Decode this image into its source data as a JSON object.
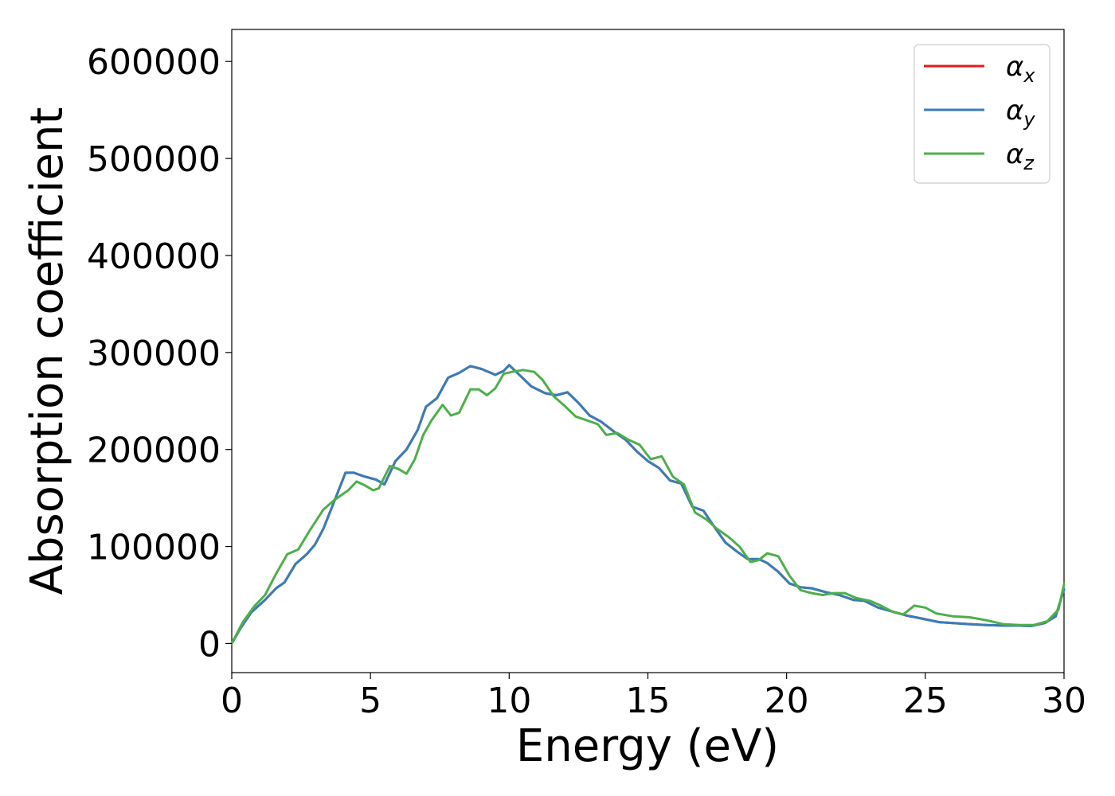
{
  "chart_data": {
    "type": "line",
    "title": "",
    "xlabel": "Energy (eV)",
    "ylabel": "Absorption coefficient",
    "xlim": [
      0,
      30
    ],
    "ylim": [
      -30000,
      633000
    ],
    "xticks": [
      0,
      5,
      10,
      15,
      20,
      25,
      30
    ],
    "xtick_labels": [
      "0",
      "5",
      "10",
      "15",
      "20",
      "25",
      "30"
    ],
    "yticks": [
      0,
      100000,
      200000,
      300000,
      400000,
      500000,
      600000
    ],
    "ytick_labels": [
      "0",
      "100000",
      "200000",
      "300000",
      "400000",
      "500000",
      "600000"
    ],
    "grid": false,
    "legend_position": "top-right",
    "series": [
      {
        "name": "α",
        "name_sub": "x",
        "color": "#e41a1c",
        "points": [
          [
            0,
            0
          ],
          [
            0.3,
            15000
          ],
          [
            0.7,
            32000
          ],
          [
            1.2,
            45000
          ],
          [
            1.6,
            57000
          ],
          [
            1.9,
            63000
          ],
          [
            2.3,
            82000
          ],
          [
            2.7,
            92000
          ],
          [
            3.0,
            102000
          ],
          [
            3.3,
            118000
          ],
          [
            3.7,
            147000
          ],
          [
            4.1,
            176000
          ],
          [
            4.4,
            176000
          ],
          [
            4.8,
            172000
          ],
          [
            5.2,
            169000
          ],
          [
            5.5,
            164000
          ],
          [
            5.9,
            188000
          ],
          [
            6.3,
            200000
          ],
          [
            6.7,
            220000
          ],
          [
            7.0,
            244000
          ],
          [
            7.4,
            253000
          ],
          [
            7.8,
            274000
          ],
          [
            8.2,
            279000
          ],
          [
            8.6,
            286000
          ],
          [
            9.0,
            283000
          ],
          [
            9.5,
            277000
          ],
          [
            9.8,
            281000
          ],
          [
            10.0,
            287000
          ],
          [
            10.4,
            276000
          ],
          [
            10.8,
            265000
          ],
          [
            11.3,
            258000
          ],
          [
            11.7,
            256000
          ],
          [
            12.1,
            259000
          ],
          [
            12.5,
            248000
          ],
          [
            12.9,
            235000
          ],
          [
            13.3,
            229000
          ],
          [
            13.8,
            218000
          ],
          [
            14.2,
            210000
          ],
          [
            14.6,
            198000
          ],
          [
            15.0,
            188000
          ],
          [
            15.4,
            181000
          ],
          [
            15.8,
            168000
          ],
          [
            16.2,
            165000
          ],
          [
            16.6,
            141000
          ],
          [
            17.0,
            137000
          ],
          [
            17.4,
            120000
          ],
          [
            17.8,
            104000
          ],
          [
            18.2,
            95000
          ],
          [
            18.6,
            87000
          ],
          [
            19.0,
            87000
          ],
          [
            19.3,
            83000
          ],
          [
            19.7,
            74000
          ],
          [
            20.1,
            62000
          ],
          [
            20.5,
            58000
          ],
          [
            20.9,
            57000
          ],
          [
            21.4,
            53000
          ],
          [
            21.9,
            50000
          ],
          [
            22.4,
            45000
          ],
          [
            22.8,
            44000
          ],
          [
            23.3,
            37000
          ],
          [
            23.8,
            33000
          ],
          [
            24.3,
            29000
          ],
          [
            25.0,
            25000
          ],
          [
            25.5,
            22000
          ],
          [
            26.0,
            21000
          ],
          [
            26.6,
            20000
          ],
          [
            27.2,
            19000
          ],
          [
            27.8,
            18500
          ],
          [
            28.3,
            18500
          ],
          [
            28.8,
            18000
          ],
          [
            29.3,
            21000
          ],
          [
            29.7,
            28000
          ],
          [
            30.0,
            56000
          ]
        ]
      },
      {
        "name": "α",
        "name_sub": "y",
        "color": "#377eb8",
        "points": [
          [
            0,
            0
          ],
          [
            0.3,
            15000
          ],
          [
            0.7,
            32000
          ],
          [
            1.2,
            45000
          ],
          [
            1.6,
            57000
          ],
          [
            1.9,
            63000
          ],
          [
            2.3,
            82000
          ],
          [
            2.7,
            92000
          ],
          [
            3.0,
            102000
          ],
          [
            3.3,
            118000
          ],
          [
            3.7,
            147000
          ],
          [
            4.1,
            176000
          ],
          [
            4.4,
            176000
          ],
          [
            4.8,
            172000
          ],
          [
            5.2,
            169000
          ],
          [
            5.5,
            164000
          ],
          [
            5.9,
            188000
          ],
          [
            6.3,
            200000
          ],
          [
            6.7,
            220000
          ],
          [
            7.0,
            244000
          ],
          [
            7.4,
            253000
          ],
          [
            7.8,
            274000
          ],
          [
            8.2,
            279000
          ],
          [
            8.6,
            286000
          ],
          [
            9.0,
            283000
          ],
          [
            9.5,
            277000
          ],
          [
            9.8,
            281000
          ],
          [
            10.0,
            287000
          ],
          [
            10.4,
            276000
          ],
          [
            10.8,
            265000
          ],
          [
            11.3,
            258000
          ],
          [
            11.7,
            256000
          ],
          [
            12.1,
            259000
          ],
          [
            12.5,
            248000
          ],
          [
            12.9,
            235000
          ],
          [
            13.3,
            229000
          ],
          [
            13.8,
            218000
          ],
          [
            14.2,
            210000
          ],
          [
            14.6,
            198000
          ],
          [
            15.0,
            188000
          ],
          [
            15.4,
            181000
          ],
          [
            15.8,
            168000
          ],
          [
            16.2,
            165000
          ],
          [
            16.6,
            141000
          ],
          [
            17.0,
            137000
          ],
          [
            17.4,
            120000
          ],
          [
            17.8,
            104000
          ],
          [
            18.2,
            95000
          ],
          [
            18.6,
            87000
          ],
          [
            19.0,
            87000
          ],
          [
            19.3,
            83000
          ],
          [
            19.7,
            74000
          ],
          [
            20.1,
            62000
          ],
          [
            20.5,
            58000
          ],
          [
            20.9,
            57000
          ],
          [
            21.4,
            53000
          ],
          [
            21.9,
            50000
          ],
          [
            22.4,
            45000
          ],
          [
            22.8,
            44000
          ],
          [
            23.3,
            37000
          ],
          [
            23.8,
            33000
          ],
          [
            24.3,
            29000
          ],
          [
            25.0,
            25000
          ],
          [
            25.5,
            22000
          ],
          [
            26.0,
            21000
          ],
          [
            26.6,
            20000
          ],
          [
            27.2,
            19000
          ],
          [
            27.8,
            18500
          ],
          [
            28.3,
            18500
          ],
          [
            28.8,
            18000
          ],
          [
            29.3,
            21000
          ],
          [
            29.7,
            28000
          ],
          [
            30.0,
            56000
          ]
        ]
      },
      {
        "name": "α",
        "name_sub": "z",
        "color": "#4daf4a",
        "points": [
          [
            0,
            0
          ],
          [
            0.4,
            22000
          ],
          [
            0.8,
            38000
          ],
          [
            1.2,
            50000
          ],
          [
            1.6,
            72000
          ],
          [
            2.0,
            92000
          ],
          [
            2.4,
            97000
          ],
          [
            2.8,
            116000
          ],
          [
            3.3,
            138000
          ],
          [
            3.7,
            148000
          ],
          [
            4.2,
            158000
          ],
          [
            4.5,
            167000
          ],
          [
            4.8,
            163000
          ],
          [
            5.1,
            158000
          ],
          [
            5.3,
            160000
          ],
          [
            5.7,
            183000
          ],
          [
            6.0,
            180000
          ],
          [
            6.3,
            175000
          ],
          [
            6.6,
            190000
          ],
          [
            6.9,
            215000
          ],
          [
            7.2,
            230000
          ],
          [
            7.6,
            246000
          ],
          [
            7.9,
            235000
          ],
          [
            8.2,
            238000
          ],
          [
            8.6,
            262000
          ],
          [
            8.9,
            262000
          ],
          [
            9.2,
            256000
          ],
          [
            9.5,
            263000
          ],
          [
            9.8,
            278000
          ],
          [
            10.1,
            280000
          ],
          [
            10.5,
            282000
          ],
          [
            10.9,
            280000
          ],
          [
            11.2,
            272000
          ],
          [
            11.6,
            255000
          ],
          [
            12.0,
            245000
          ],
          [
            12.4,
            234000
          ],
          [
            12.8,
            230000
          ],
          [
            13.2,
            226000
          ],
          [
            13.5,
            215000
          ],
          [
            13.9,
            217000
          ],
          [
            14.3,
            210000
          ],
          [
            14.7,
            205000
          ],
          [
            15.1,
            190000
          ],
          [
            15.5,
            193000
          ],
          [
            15.9,
            172000
          ],
          [
            16.3,
            164000
          ],
          [
            16.7,
            135000
          ],
          [
            17.1,
            128000
          ],
          [
            17.5,
            118000
          ],
          [
            17.9,
            110000
          ],
          [
            18.3,
            100000
          ],
          [
            18.7,
            84000
          ],
          [
            19.0,
            86000
          ],
          [
            19.3,
            93000
          ],
          [
            19.7,
            90000
          ],
          [
            20.1,
            70000
          ],
          [
            20.5,
            55000
          ],
          [
            20.9,
            52000
          ],
          [
            21.3,
            50000
          ],
          [
            21.7,
            52000
          ],
          [
            22.1,
            52000
          ],
          [
            22.5,
            47000
          ],
          [
            23.0,
            44000
          ],
          [
            23.4,
            39000
          ],
          [
            23.8,
            33000
          ],
          [
            24.2,
            30000
          ],
          [
            24.6,
            39000
          ],
          [
            25.0,
            37000
          ],
          [
            25.4,
            31000
          ],
          [
            26.0,
            28000
          ],
          [
            26.6,
            27000
          ],
          [
            27.2,
            24000
          ],
          [
            27.8,
            20000
          ],
          [
            28.4,
            19000
          ],
          [
            28.9,
            19000
          ],
          [
            29.4,
            23000
          ],
          [
            29.8,
            35000
          ],
          [
            30.0,
            61000
          ]
        ]
      }
    ]
  }
}
